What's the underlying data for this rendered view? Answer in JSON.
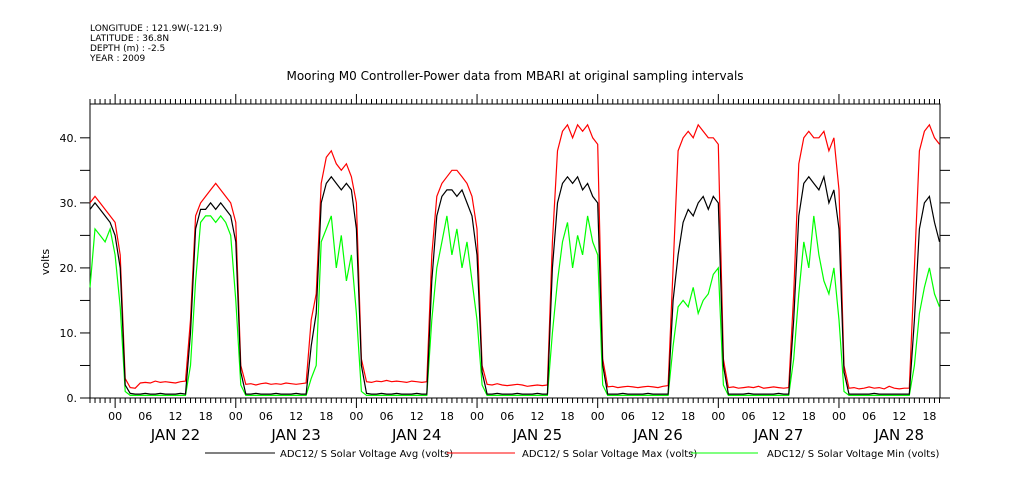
{
  "header": {
    "meta": [
      "LONGITUDE : 121.9W(-121.9)",
      "LATITUDE : 36.8N",
      "DEPTH (m) : -2.5",
      "YEAR : 2009"
    ]
  },
  "chart_data": {
    "type": "line",
    "title": "Mooring M0 Controller-Power data from MBARI at original sampling intervals",
    "xlabel": "",
    "ylabel": "volts",
    "x_start": "2009-01-21 19:00",
    "x_step_hours": 1,
    "xlim_hours": [
      0,
      169.1
    ],
    "ylim": [
      0,
      45.2
    ],
    "yticks": [
      0,
      10,
      20,
      30,
      40
    ],
    "ytick_labels": [
      "0.",
      "10.",
      "20.",
      "30.",
      "40."
    ],
    "yminor": [
      5,
      15,
      25,
      35
    ],
    "xtick_hour_labels": [
      "00",
      "06",
      "12",
      "18"
    ],
    "day_labels": [
      "JAN 22",
      "JAN 23",
      "JAN 24",
      "JAN 25",
      "JAN 26",
      "JAN 27",
      "JAN 28"
    ],
    "grid": false,
    "legend_position": "bottom",
    "series": [
      {
        "name": "ADC12/ S Solar Voltage Avg (volts)",
        "color": "#000000",
        "values": [
          29,
          30,
          29,
          28,
          27,
          25,
          20,
          2,
          0.7,
          0.6,
          0.6,
          0.7,
          0.6,
          0.6,
          0.7,
          0.6,
          0.6,
          0.6,
          0.7,
          0.6,
          10,
          26,
          29,
          29,
          30,
          29,
          30,
          29,
          28,
          24,
          4,
          0.6,
          0.6,
          0.7,
          0.6,
          0.6,
          0.6,
          0.7,
          0.6,
          0.6,
          0.6,
          0.7,
          0.6,
          0.6,
          8,
          13,
          30,
          33,
          34,
          33,
          32,
          33,
          32,
          26,
          5,
          0.7,
          0.6,
          0.6,
          0.7,
          0.6,
          0.6,
          0.7,
          0.6,
          0.6,
          0.6,
          0.7,
          0.6,
          0.6,
          18,
          28,
          31,
          32,
          32,
          31,
          32,
          30,
          28,
          22,
          4,
          0.6,
          0.6,
          0.7,
          0.6,
          0.6,
          0.6,
          0.7,
          0.6,
          0.6,
          0.6,
          0.7,
          0.6,
          0.6,
          20,
          30,
          33,
          34,
          33,
          34,
          32,
          33,
          31,
          30,
          5,
          0.6,
          0.6,
          0.6,
          0.7,
          0.6,
          0.6,
          0.6,
          0.6,
          0.7,
          0.6,
          0.6,
          0.6,
          0.6,
          15,
          22,
          27,
          29,
          28,
          30,
          31,
          29,
          31,
          30,
          5,
          0.6,
          0.6,
          0.6,
          0.6,
          0.7,
          0.6,
          0.6,
          0.6,
          0.6,
          0.6,
          0.7,
          0.6,
          0.6,
          12,
          28,
          33,
          34,
          33,
          32,
          34,
          30,
          32,
          26,
          4,
          0.6,
          0.6,
          0.6,
          0.6,
          0.6,
          0.7,
          0.6,
          0.6,
          0.6,
          0.6,
          0.6,
          0.6,
          0.6,
          12,
          26,
          30,
          31,
          27,
          24
        ]
      },
      {
        "name": "ADC12/ S Solar Voltage Max (volts)",
        "color": "#ff0000",
        "values": [
          30,
          31,
          30,
          29,
          28,
          27,
          22,
          3,
          1.6,
          1.5,
          2.3,
          2.4,
          2.3,
          2.6,
          2.4,
          2.5,
          2.4,
          2.3,
          2.5,
          2.6,
          12,
          28,
          30,
          31,
          32,
          33,
          32,
          31,
          30,
          27,
          5,
          2.1,
          2.2,
          2.0,
          2.2,
          2.3,
          2.1,
          2.2,
          2.1,
          2.3,
          2.2,
          2.1,
          2.2,
          2.3,
          12,
          16,
          33,
          37,
          38,
          36,
          35,
          36,
          34,
          30,
          6,
          2.5,
          2.4,
          2.6,
          2.5,
          2.7,
          2.5,
          2.6,
          2.5,
          2.4,
          2.6,
          2.5,
          2.4,
          2.5,
          22,
          31,
          33,
          34,
          35,
          35,
          34,
          33,
          31,
          26,
          5,
          2.1,
          2.0,
          2.2,
          2.0,
          1.9,
          2.0,
          2.1,
          2.0,
          1.8,
          1.9,
          2.0,
          1.9,
          2.0,
          24,
          38,
          41,
          42,
          40,
          42,
          41,
          42,
          40,
          39,
          6,
          1.7,
          1.8,
          1.6,
          1.7,
          1.8,
          1.7,
          1.6,
          1.7,
          1.8,
          1.7,
          1.6,
          1.8,
          1.9,
          20,
          38,
          40,
          41,
          40,
          42,
          41,
          40,
          40,
          39,
          6,
          1.6,
          1.7,
          1.5,
          1.6,
          1.7,
          1.6,
          1.8,
          1.5,
          1.6,
          1.7,
          1.6,
          1.5,
          1.6,
          16,
          36,
          40,
          41,
          40,
          40,
          41,
          38,
          40,
          32,
          5,
          1.5,
          1.6,
          1.4,
          1.5,
          1.7,
          1.5,
          1.6,
          1.4,
          1.8,
          1.5,
          1.4,
          1.5,
          1.5,
          20,
          38,
          41,
          42,
          40,
          39
        ]
      },
      {
        "name": "ADC12/ S Solar Voltage Min (volts)",
        "color": "#00ff00",
        "values": [
          17,
          26,
          25,
          24,
          26,
          22,
          14,
          1,
          0.4,
          0.4,
          0.4,
          0.4,
          0.4,
          0.4,
          0.4,
          0.4,
          0.4,
          0.4,
          0.4,
          0.4,
          5,
          18,
          27,
          28,
          28,
          27,
          28,
          27,
          25,
          15,
          2,
          0.4,
          0.4,
          0.4,
          0.4,
          0.4,
          0.4,
          0.4,
          0.4,
          0.4,
          0.4,
          0.4,
          0.4,
          0.4,
          3,
          5,
          24,
          26,
          28,
          20,
          25,
          18,
          22,
          13,
          1,
          0.4,
          0.4,
          0.4,
          0.4,
          0.4,
          0.4,
          0.4,
          0.4,
          0.4,
          0.4,
          0.4,
          0.4,
          0.4,
          12,
          20,
          24,
          28,
          22,
          26,
          20,
          24,
          18,
          12,
          2,
          0.4,
          0.4,
          0.4,
          0.4,
          0.4,
          0.4,
          0.4,
          0.4,
          0.4,
          0.4,
          0.4,
          0.4,
          0.4,
          10,
          18,
          24,
          27,
          20,
          25,
          22,
          28,
          24,
          22,
          2,
          0.4,
          0.4,
          0.4,
          0.4,
          0.4,
          0.4,
          0.4,
          0.4,
          0.4,
          0.4,
          0.4,
          0.4,
          0.4,
          8,
          14,
          15,
          14,
          17,
          13,
          15,
          16,
          19,
          20,
          2,
          0.4,
          0.4,
          0.4,
          0.4,
          0.4,
          0.4,
          0.4,
          0.4,
          0.4,
          0.4,
          0.4,
          0.4,
          0.4,
          6,
          16,
          24,
          20,
          28,
          22,
          18,
          16,
          20,
          12,
          1,
          0.4,
          0.4,
          0.4,
          0.4,
          0.4,
          0.4,
          0.4,
          0.4,
          0.4,
          0.4,
          0.4,
          0.4,
          0.4,
          5,
          13,
          17,
          20,
          16,
          14
        ]
      }
    ]
  }
}
